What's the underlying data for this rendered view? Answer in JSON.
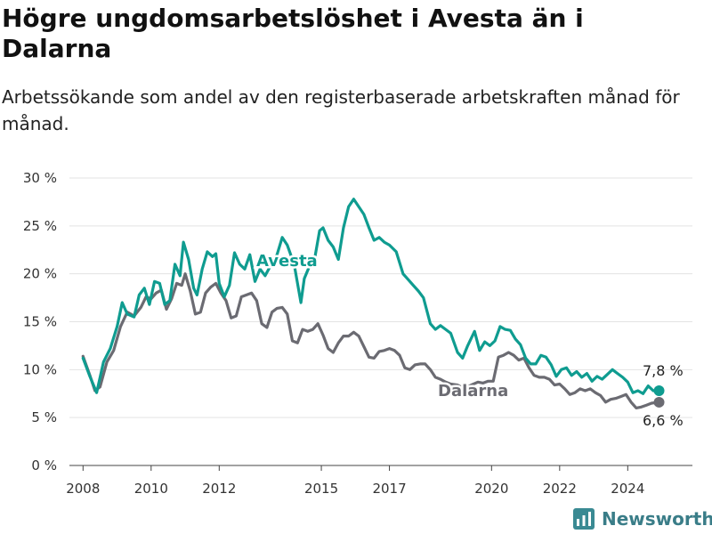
{
  "chart_data": {
    "type": "line",
    "title": "Högre ungdomsarbetslöshet i Avesta än i Dalarna",
    "subtitle": "Arbetssökande som andel av den registerbaserade arbetskraften månad för månad.",
    "xlabel": "",
    "ylabel": "",
    "xlim": [
      2007.6,
      2025.9
    ],
    "ylim": [
      0,
      30
    ],
    "yticks": [
      0,
      5,
      10,
      15,
      20,
      25,
      30
    ],
    "ytick_labels": [
      "0 %",
      "5 %",
      "10 %",
      "15 %",
      "20 %",
      "25 %",
      "30 %"
    ],
    "xticks": [
      2008,
      2010,
      2012,
      2015,
      2017,
      2020,
      2022,
      2024
    ],
    "xtick_labels": [
      "2008",
      "2010",
      "2012",
      "2015",
      "2017",
      "2020",
      "2022",
      "2024"
    ],
    "grid": "horizontal",
    "legend": "direct labels",
    "series": [
      {
        "name": "Avesta",
        "color": "#0f9c90",
        "end_value_label": "7,8 %",
        "points": [
          [
            2008.0,
            11.2
          ],
          [
            2008.2,
            9.3
          ],
          [
            2008.4,
            7.6
          ],
          [
            2008.6,
            10.8
          ],
          [
            2008.8,
            12.2
          ],
          [
            2009.0,
            14.5
          ],
          [
            2009.15,
            17.0
          ],
          [
            2009.3,
            15.8
          ],
          [
            2009.5,
            15.5
          ],
          [
            2009.65,
            17.8
          ],
          [
            2009.8,
            18.5
          ],
          [
            2009.95,
            16.8
          ],
          [
            2010.1,
            19.2
          ],
          [
            2010.25,
            19.0
          ],
          [
            2010.4,
            16.8
          ],
          [
            2010.55,
            17.2
          ],
          [
            2010.7,
            21.0
          ],
          [
            2010.85,
            19.8
          ],
          [
            2010.95,
            23.3
          ],
          [
            2011.1,
            21.5
          ],
          [
            2011.25,
            18.5
          ],
          [
            2011.35,
            17.8
          ],
          [
            2011.5,
            20.5
          ],
          [
            2011.65,
            22.3
          ],
          [
            2011.8,
            21.8
          ],
          [
            2011.9,
            22.1
          ],
          [
            2012.0,
            19.0
          ],
          [
            2012.15,
            17.6
          ],
          [
            2012.3,
            18.8
          ],
          [
            2012.45,
            22.2
          ],
          [
            2012.6,
            21.0
          ],
          [
            2012.75,
            20.5
          ],
          [
            2012.9,
            22.0
          ],
          [
            2013.05,
            19.2
          ],
          [
            2013.2,
            20.5
          ],
          [
            2013.35,
            19.8
          ],
          [
            2013.5,
            20.8
          ],
          [
            2013.7,
            22.0
          ],
          [
            2013.85,
            23.8
          ],
          [
            2014.0,
            23.0
          ],
          [
            2014.2,
            21.0
          ],
          [
            2014.4,
            17.0
          ],
          [
            2014.5,
            19.5
          ],
          [
            2014.65,
            20.8
          ],
          [
            2014.8,
            21.5
          ],
          [
            2014.95,
            24.5
          ],
          [
            2015.05,
            24.8
          ],
          [
            2015.2,
            23.5
          ],
          [
            2015.35,
            22.8
          ],
          [
            2015.5,
            21.5
          ],
          [
            2015.65,
            24.8
          ],
          [
            2015.8,
            27.0
          ],
          [
            2015.95,
            27.8
          ],
          [
            2016.1,
            27.0
          ],
          [
            2016.25,
            26.2
          ],
          [
            2016.4,
            24.8
          ],
          [
            2016.55,
            23.5
          ],
          [
            2016.7,
            23.8
          ],
          [
            2016.85,
            23.3
          ],
          [
            2017.0,
            23.0
          ],
          [
            2017.2,
            22.3
          ],
          [
            2017.4,
            20.0
          ],
          [
            2017.55,
            19.4
          ],
          [
            2017.7,
            18.8
          ],
          [
            2017.85,
            18.2
          ],
          [
            2018.0,
            17.5
          ],
          [
            2018.2,
            14.8
          ],
          [
            2018.35,
            14.2
          ],
          [
            2018.5,
            14.6
          ],
          [
            2018.65,
            14.2
          ],
          [
            2018.8,
            13.8
          ],
          [
            2019.0,
            11.8
          ],
          [
            2019.15,
            11.2
          ],
          [
            2019.3,
            12.5
          ],
          [
            2019.5,
            14.0
          ],
          [
            2019.65,
            12.0
          ],
          [
            2019.8,
            12.9
          ],
          [
            2019.95,
            12.5
          ],
          [
            2020.1,
            13.0
          ],
          [
            2020.25,
            14.5
          ],
          [
            2020.4,
            14.2
          ],
          [
            2020.55,
            14.1
          ],
          [
            2020.7,
            13.2
          ],
          [
            2020.85,
            12.6
          ],
          [
            2021.0,
            11.2
          ],
          [
            2021.15,
            10.6
          ],
          [
            2021.3,
            10.6
          ],
          [
            2021.45,
            11.5
          ],
          [
            2021.6,
            11.3
          ],
          [
            2021.75,
            10.5
          ],
          [
            2021.9,
            9.3
          ],
          [
            2022.05,
            10.0
          ],
          [
            2022.2,
            10.2
          ],
          [
            2022.35,
            9.4
          ],
          [
            2022.5,
            9.8
          ],
          [
            2022.65,
            9.2
          ],
          [
            2022.8,
            9.6
          ],
          [
            2022.95,
            8.8
          ],
          [
            2023.1,
            9.3
          ],
          [
            2023.25,
            9.0
          ],
          [
            2023.4,
            9.5
          ],
          [
            2023.55,
            10.0
          ],
          [
            2023.7,
            9.6
          ],
          [
            2023.85,
            9.2
          ],
          [
            2024.0,
            8.7
          ],
          [
            2024.15,
            7.6
          ],
          [
            2024.3,
            7.8
          ],
          [
            2024.45,
            7.5
          ],
          [
            2024.6,
            8.3
          ],
          [
            2024.75,
            7.8
          ],
          [
            2024.92,
            7.8
          ]
        ]
      },
      {
        "name": "Dalarna",
        "color": "#6b6b72",
        "end_value_label": "6,6 %",
        "points": [
          [
            2008.0,
            11.4
          ],
          [
            2008.2,
            9.4
          ],
          [
            2008.35,
            7.8
          ],
          [
            2008.5,
            8.2
          ],
          [
            2008.7,
            10.8
          ],
          [
            2008.9,
            12.0
          ],
          [
            2009.1,
            14.5
          ],
          [
            2009.3,
            16.0
          ],
          [
            2009.5,
            15.6
          ],
          [
            2009.7,
            16.5
          ],
          [
            2009.85,
            17.6
          ],
          [
            2010.0,
            17.4
          ],
          [
            2010.15,
            18.0
          ],
          [
            2010.3,
            18.3
          ],
          [
            2010.45,
            16.3
          ],
          [
            2010.6,
            17.4
          ],
          [
            2010.75,
            19.0
          ],
          [
            2010.9,
            18.8
          ],
          [
            2011.0,
            20.0
          ],
          [
            2011.15,
            18.2
          ],
          [
            2011.3,
            15.8
          ],
          [
            2011.45,
            16.0
          ],
          [
            2011.6,
            18.0
          ],
          [
            2011.75,
            18.6
          ],
          [
            2011.9,
            19.0
          ],
          [
            2012.05,
            18.0
          ],
          [
            2012.2,
            17.2
          ],
          [
            2012.35,
            15.4
          ],
          [
            2012.5,
            15.6
          ],
          [
            2012.65,
            17.6
          ],
          [
            2012.8,
            17.8
          ],
          [
            2012.95,
            18.0
          ],
          [
            2013.1,
            17.2
          ],
          [
            2013.25,
            14.8
          ],
          [
            2013.4,
            14.4
          ],
          [
            2013.55,
            16.0
          ],
          [
            2013.7,
            16.4
          ],
          [
            2013.85,
            16.5
          ],
          [
            2014.0,
            15.8
          ],
          [
            2014.15,
            13.0
          ],
          [
            2014.3,
            12.8
          ],
          [
            2014.45,
            14.2
          ],
          [
            2014.6,
            14.0
          ],
          [
            2014.75,
            14.2
          ],
          [
            2014.9,
            14.8
          ],
          [
            2015.05,
            13.6
          ],
          [
            2015.2,
            12.2
          ],
          [
            2015.35,
            11.8
          ],
          [
            2015.5,
            12.8
          ],
          [
            2015.65,
            13.5
          ],
          [
            2015.8,
            13.5
          ],
          [
            2015.95,
            13.9
          ],
          [
            2016.1,
            13.5
          ],
          [
            2016.25,
            12.4
          ],
          [
            2016.4,
            11.3
          ],
          [
            2016.55,
            11.2
          ],
          [
            2016.7,
            11.9
          ],
          [
            2016.85,
            12.0
          ],
          [
            2017.0,
            12.2
          ],
          [
            2017.15,
            12.0
          ],
          [
            2017.3,
            11.5
          ],
          [
            2017.45,
            10.2
          ],
          [
            2017.6,
            10.0
          ],
          [
            2017.75,
            10.5
          ],
          [
            2017.9,
            10.6
          ],
          [
            2018.05,
            10.6
          ],
          [
            2018.2,
            10.0
          ],
          [
            2018.35,
            9.2
          ],
          [
            2018.5,
            9.0
          ],
          [
            2018.65,
            8.7
          ],
          [
            2018.8,
            8.5
          ],
          [
            2019.0,
            8.4
          ],
          [
            2019.2,
            8.0
          ],
          [
            2019.4,
            8.4
          ],
          [
            2019.6,
            8.7
          ],
          [
            2019.75,
            8.6
          ],
          [
            2019.9,
            8.8
          ],
          [
            2020.05,
            8.8
          ],
          [
            2020.2,
            11.3
          ],
          [
            2020.35,
            11.5
          ],
          [
            2020.5,
            11.8
          ],
          [
            2020.65,
            11.5
          ],
          [
            2020.8,
            11.0
          ],
          [
            2020.95,
            11.2
          ],
          [
            2021.1,
            10.2
          ],
          [
            2021.25,
            9.4
          ],
          [
            2021.4,
            9.2
          ],
          [
            2021.55,
            9.2
          ],
          [
            2021.7,
            9.0
          ],
          [
            2021.85,
            8.4
          ],
          [
            2022.0,
            8.5
          ],
          [
            2022.15,
            8.0
          ],
          [
            2022.3,
            7.4
          ],
          [
            2022.45,
            7.6
          ],
          [
            2022.6,
            8.0
          ],
          [
            2022.75,
            7.8
          ],
          [
            2022.9,
            8.0
          ],
          [
            2023.05,
            7.6
          ],
          [
            2023.2,
            7.3
          ],
          [
            2023.35,
            6.6
          ],
          [
            2023.5,
            6.9
          ],
          [
            2023.65,
            7.0
          ],
          [
            2023.8,
            7.2
          ],
          [
            2023.95,
            7.4
          ],
          [
            2024.1,
            6.6
          ],
          [
            2024.25,
            6.0
          ],
          [
            2024.4,
            6.1
          ],
          [
            2024.55,
            6.3
          ],
          [
            2024.7,
            6.5
          ],
          [
            2024.92,
            6.6
          ]
        ]
      }
    ]
  },
  "branding": {
    "name": "Newsworthy",
    "icon": "bar-chart-logo-icon"
  }
}
